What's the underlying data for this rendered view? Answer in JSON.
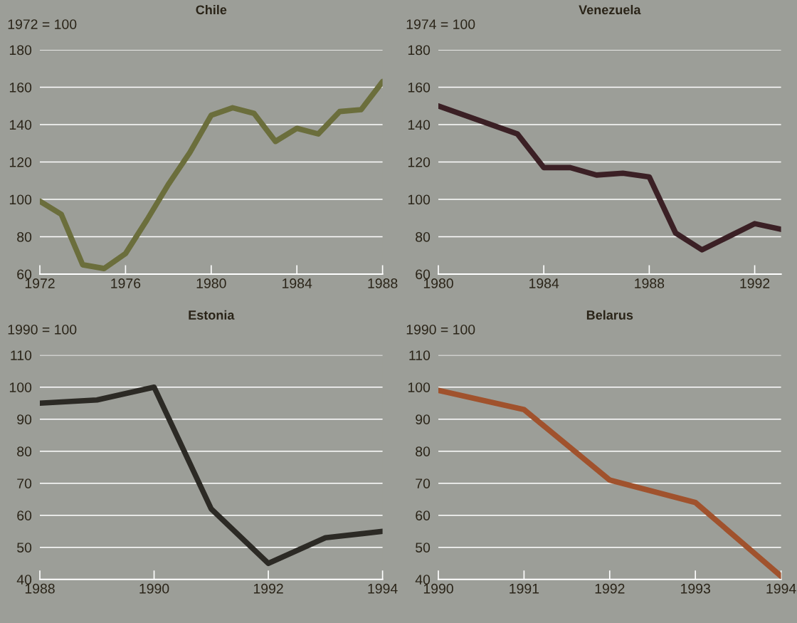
{
  "chart_data": [
    {
      "type": "line",
      "title": "Chile",
      "ylabel": "1972 = 100",
      "x": [
        1972,
        1973,
        1974,
        1975,
        1976,
        1977,
        1978,
        1979,
        1980,
        1981,
        1982,
        1983,
        1984,
        1985,
        1986,
        1987,
        1988
      ],
      "series": [
        {
          "color": "#6b6e3c",
          "values": [
            99,
            92,
            65,
            63,
            71,
            89,
            108,
            125,
            145,
            149,
            146,
            131,
            138,
            135,
            147,
            148,
            163
          ]
        }
      ],
      "xlim": [
        1972,
        1988
      ],
      "xticks": [
        1972,
        1976,
        1980,
        1984,
        1988
      ],
      "ylim": [
        60,
        180
      ],
      "yticks": [
        60,
        80,
        100,
        120,
        140,
        160,
        180
      ],
      "grid": "y"
    },
    {
      "type": "line",
      "title": "Venezuela",
      "ylabel": "1974 = 100",
      "x": [
        1980,
        1983,
        1984,
        1985,
        1986,
        1987,
        1988,
        1989,
        1990,
        1991,
        1992,
        1993
      ],
      "series": [
        {
          "color": "#3b2025",
          "values": [
            150,
            135,
            117,
            117,
            113,
            114,
            112,
            82,
            73,
            80,
            87,
            84
          ]
        }
      ],
      "xlim": [
        1980,
        1993
      ],
      "xticks": [
        1980,
        1984,
        1988,
        1992
      ],
      "ylim": [
        60,
        180
      ],
      "yticks": [
        60,
        80,
        100,
        120,
        140,
        160,
        180
      ],
      "grid": "y"
    },
    {
      "type": "line",
      "title": "Estonia",
      "ylabel": "1990 = 100",
      "x": [
        1988,
        1989,
        1990,
        1991,
        1992,
        1993,
        1994
      ],
      "series": [
        {
          "color": "#2c2a25",
          "values": [
            95,
            96,
            100,
            62,
            45,
            53,
            55
          ]
        }
      ],
      "xlim": [
        1988,
        1994
      ],
      "xticks": [
        1988,
        1990,
        1992,
        1994
      ],
      "ylim": [
        40,
        110
      ],
      "yticks": [
        40,
        50,
        60,
        70,
        80,
        90,
        100,
        110
      ],
      "grid": "y"
    },
    {
      "type": "line",
      "title": "Belarus",
      "ylabel": "1990 = 100",
      "x": [
        1990,
        1991,
        1992,
        1993,
        1994
      ],
      "series": [
        {
          "color": "#a0522d",
          "values": [
            99,
            93,
            71,
            64,
            41
          ]
        }
      ],
      "xlim": [
        1990,
        1994
      ],
      "xticks": [
        1990,
        1991,
        1992,
        1993,
        1994
      ],
      "ylim": [
        40,
        110
      ],
      "yticks": [
        40,
        50,
        60,
        70,
        80,
        90,
        100,
        110
      ],
      "grid": "y"
    }
  ]
}
